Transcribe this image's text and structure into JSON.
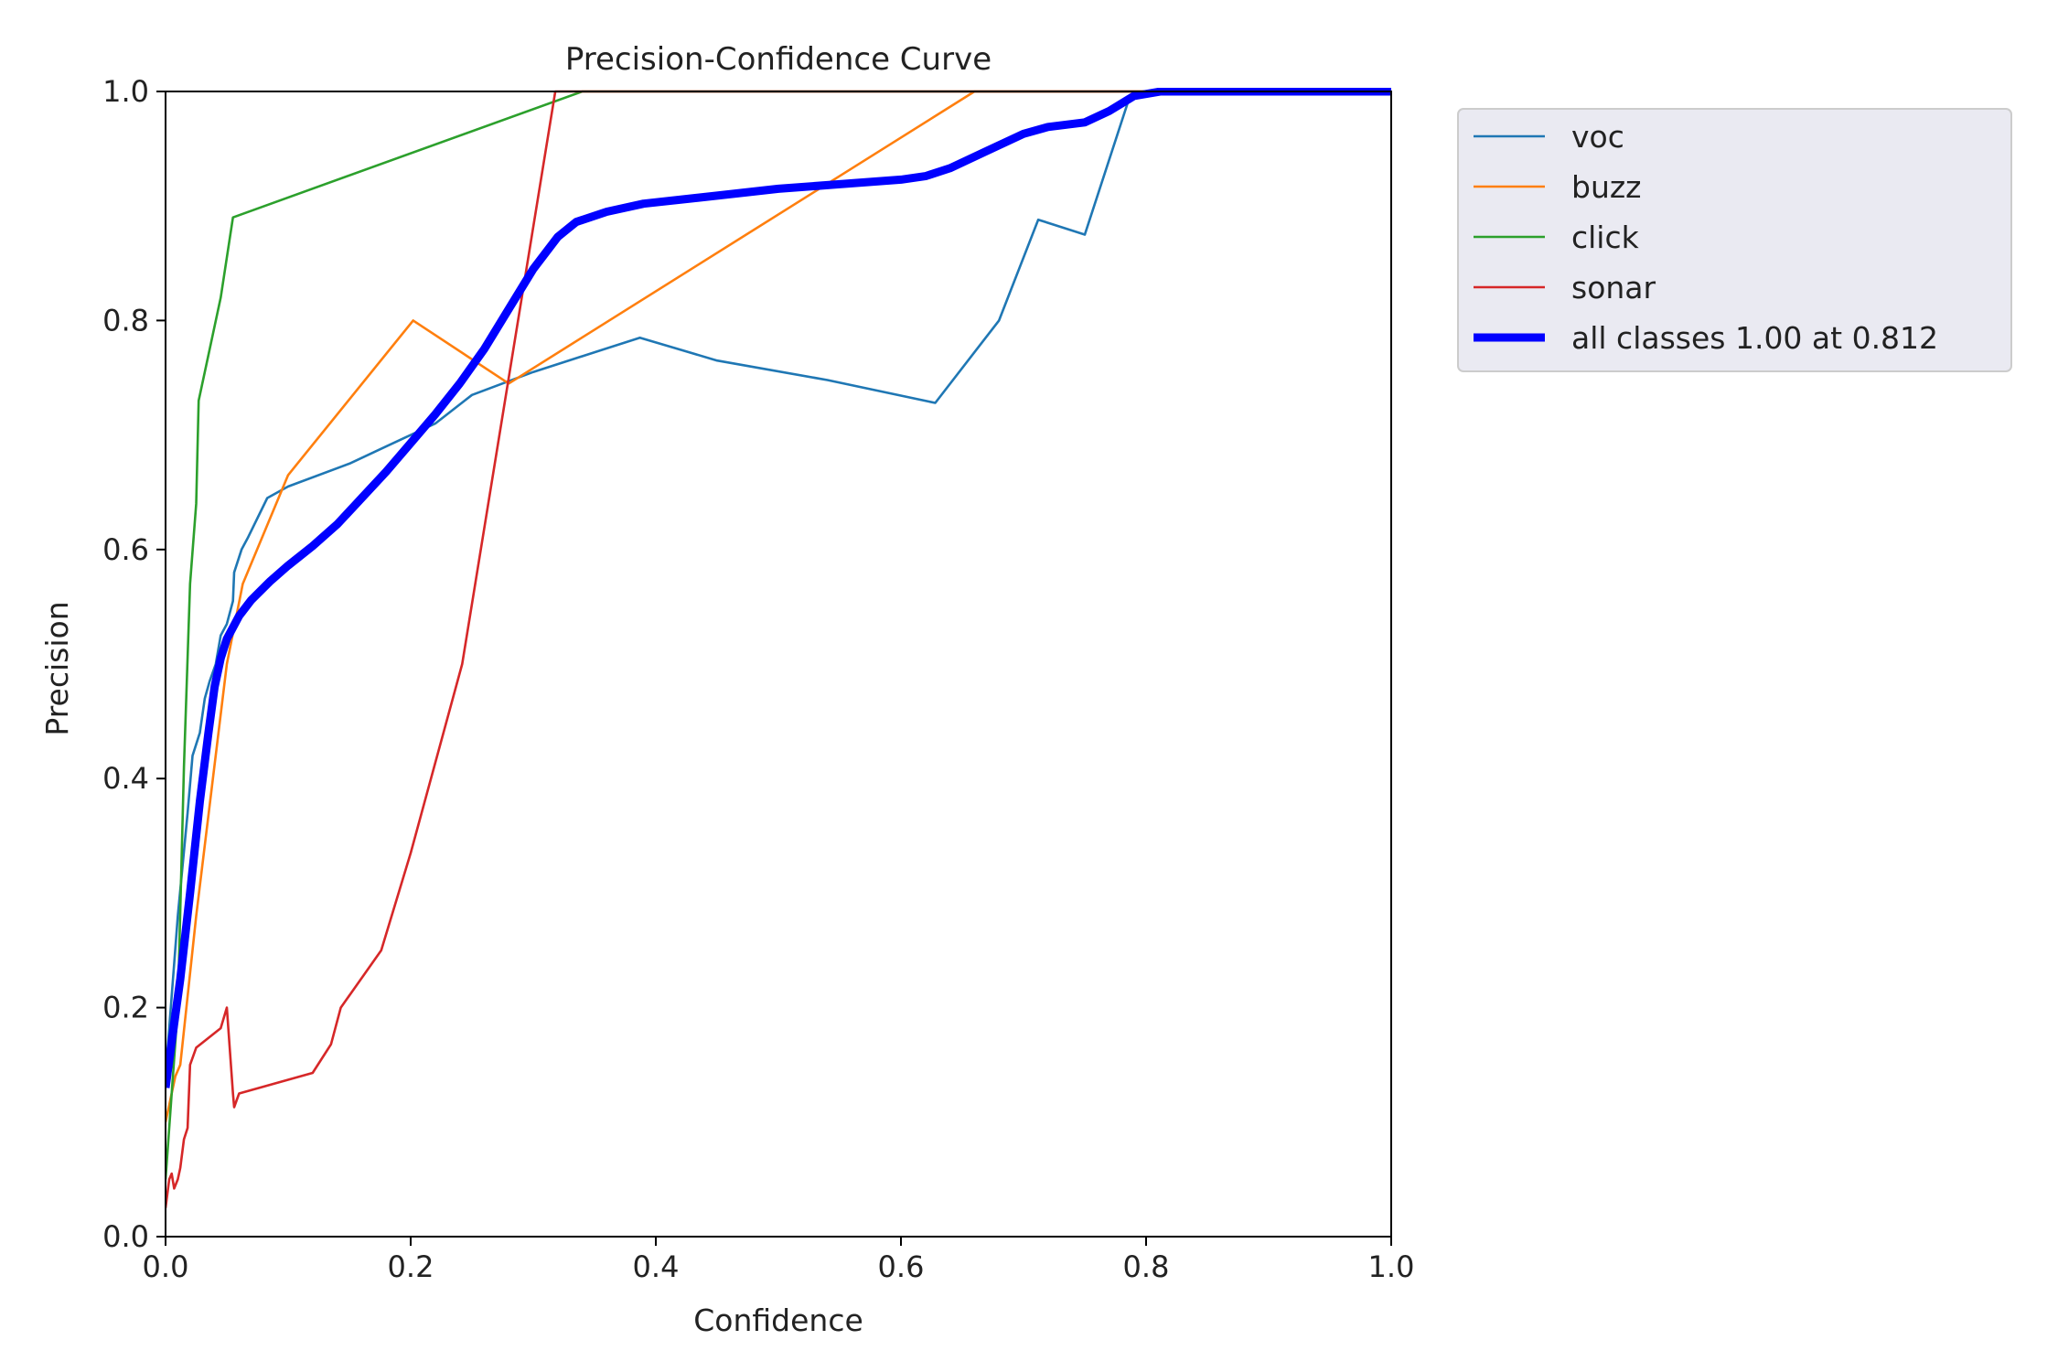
{
  "chart_data": {
    "type": "line",
    "title": "Precision-Confidence Curve",
    "xlabel": "Confidence",
    "ylabel": "Precision",
    "xlim": [
      0.0,
      1.0
    ],
    "ylim": [
      0.0,
      1.0
    ],
    "xticks": [
      "0.0",
      "0.2",
      "0.4",
      "0.6",
      "0.8",
      "1.0"
    ],
    "yticks": [
      "0.0",
      "0.2",
      "0.4",
      "0.6",
      "0.8",
      "1.0"
    ],
    "grid": false,
    "legend_position": "outside upper right",
    "series": [
      {
        "name": "voc",
        "color": "#1f77b4",
        "width": "thin",
        "points": [
          [
            0.0,
            0.14
          ],
          [
            0.01,
            0.28
          ],
          [
            0.018,
            0.37
          ],
          [
            0.022,
            0.42
          ],
          [
            0.028,
            0.44
          ],
          [
            0.032,
            0.47
          ],
          [
            0.036,
            0.485
          ],
          [
            0.041,
            0.5
          ],
          [
            0.045,
            0.525
          ],
          [
            0.05,
            0.535
          ],
          [
            0.055,
            0.555
          ],
          [
            0.056,
            0.58
          ],
          [
            0.062,
            0.6
          ],
          [
            0.067,
            0.61
          ],
          [
            0.083,
            0.645
          ],
          [
            0.1,
            0.655
          ],
          [
            0.15,
            0.675
          ],
          [
            0.18,
            0.69
          ],
          [
            0.22,
            0.71
          ],
          [
            0.25,
            0.735
          ],
          [
            0.3,
            0.755
          ],
          [
            0.387,
            0.785
          ],
          [
            0.45,
            0.765
          ],
          [
            0.54,
            0.748
          ],
          [
            0.628,
            0.728
          ],
          [
            0.68,
            0.8
          ],
          [
            0.712,
            0.888
          ],
          [
            0.75,
            0.875
          ],
          [
            0.785,
            0.99
          ],
          [
            0.8,
            1.0
          ],
          [
            1.0,
            1.0
          ]
        ]
      },
      {
        "name": "buzz",
        "color": "#ff7f0e",
        "width": "thin",
        "points": [
          [
            0.0,
            0.1
          ],
          [
            0.008,
            0.14
          ],
          [
            0.012,
            0.15
          ],
          [
            0.025,
            0.28
          ],
          [
            0.05,
            0.5
          ],
          [
            0.063,
            0.57
          ],
          [
            0.1,
            0.665
          ],
          [
            0.202,
            0.8
          ],
          [
            0.28,
            0.745
          ],
          [
            0.66,
            1.0
          ],
          [
            1.0,
            1.0
          ]
        ]
      },
      {
        "name": "click",
        "color": "#2ca02c",
        "width": "thin",
        "points": [
          [
            0.0,
            0.05
          ],
          [
            0.01,
            0.2
          ],
          [
            0.015,
            0.41
          ],
          [
            0.02,
            0.57
          ],
          [
            0.025,
            0.64
          ],
          [
            0.027,
            0.73
          ],
          [
            0.045,
            0.82
          ],
          [
            0.055,
            0.89
          ],
          [
            0.34,
            1.0
          ],
          [
            1.0,
            1.0
          ]
        ]
      },
      {
        "name": "sonar",
        "color": "#d62728",
        "width": "thin",
        "points": [
          [
            0.0,
            0.025
          ],
          [
            0.003,
            0.05
          ],
          [
            0.005,
            0.055
          ],
          [
            0.007,
            0.042
          ],
          [
            0.01,
            0.05
          ],
          [
            0.012,
            0.06
          ],
          [
            0.015,
            0.085
          ],
          [
            0.018,
            0.095
          ],
          [
            0.02,
            0.15
          ],
          [
            0.025,
            0.165
          ],
          [
            0.045,
            0.182
          ],
          [
            0.05,
            0.2
          ],
          [
            0.055,
            0.125
          ],
          [
            0.056,
            0.113
          ],
          [
            0.06,
            0.125
          ],
          [
            0.12,
            0.143
          ],
          [
            0.135,
            0.168
          ],
          [
            0.143,
            0.2
          ],
          [
            0.176,
            0.25
          ],
          [
            0.2,
            0.335
          ],
          [
            0.242,
            0.5
          ],
          [
            0.28,
            0.75
          ],
          [
            0.318,
            1.0
          ],
          [
            1.0,
            1.0
          ]
        ]
      },
      {
        "name": "all classes 1.00 at 0.812",
        "color": "#0000ff",
        "width": "thick",
        "points": [
          [
            0.0,
            0.13
          ],
          [
            0.005,
            0.17
          ],
          [
            0.012,
            0.225
          ],
          [
            0.02,
            0.3
          ],
          [
            0.028,
            0.38
          ],
          [
            0.035,
            0.44
          ],
          [
            0.04,
            0.48
          ],
          [
            0.045,
            0.505
          ],
          [
            0.05,
            0.522
          ],
          [
            0.06,
            0.542
          ],
          [
            0.07,
            0.556
          ],
          [
            0.085,
            0.572
          ],
          [
            0.1,
            0.586
          ],
          [
            0.12,
            0.603
          ],
          [
            0.14,
            0.622
          ],
          [
            0.16,
            0.645
          ],
          [
            0.18,
            0.668
          ],
          [
            0.2,
            0.693
          ],
          [
            0.22,
            0.718
          ],
          [
            0.24,
            0.745
          ],
          [
            0.26,
            0.775
          ],
          [
            0.28,
            0.81
          ],
          [
            0.3,
            0.845
          ],
          [
            0.32,
            0.873
          ],
          [
            0.335,
            0.886
          ],
          [
            0.36,
            0.895
          ],
          [
            0.39,
            0.902
          ],
          [
            0.45,
            0.909
          ],
          [
            0.5,
            0.915
          ],
          [
            0.55,
            0.919
          ],
          [
            0.6,
            0.923
          ],
          [
            0.62,
            0.926
          ],
          [
            0.64,
            0.933
          ],
          [
            0.67,
            0.948
          ],
          [
            0.7,
            0.963
          ],
          [
            0.72,
            0.969
          ],
          [
            0.75,
            0.973
          ],
          [
            0.77,
            0.983
          ],
          [
            0.79,
            0.996
          ],
          [
            0.812,
            1.0
          ],
          [
            1.0,
            1.0
          ]
        ]
      }
    ]
  }
}
